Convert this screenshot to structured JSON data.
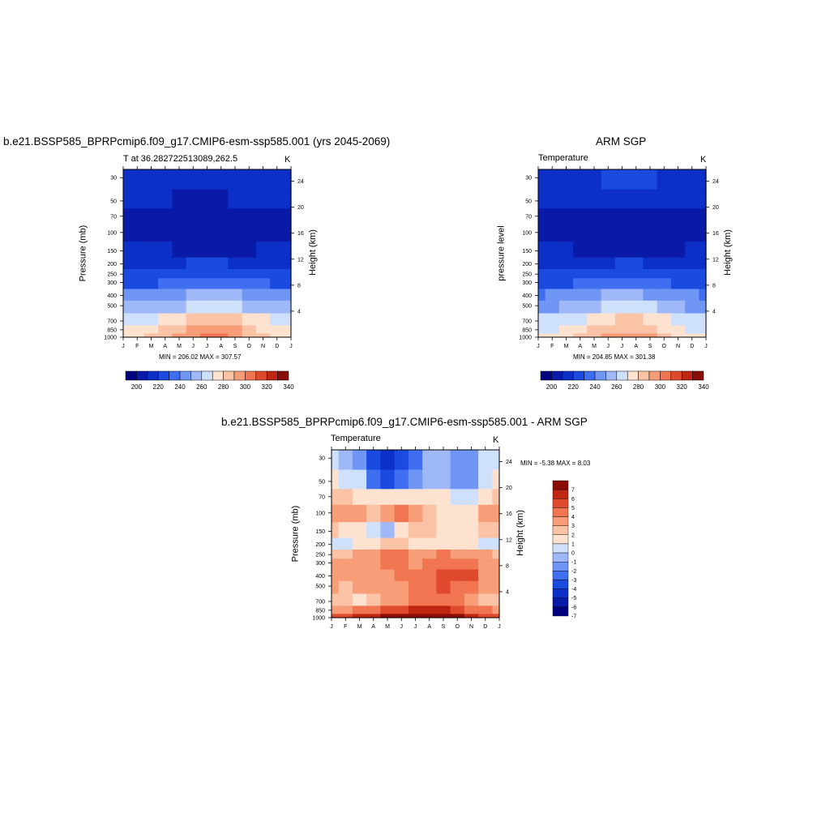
{
  "panels": [
    {
      "title": "b.e21.BSSP585_BPRPcmip6.f09_g17.CMIP6-esm-ssp585.001 (yrs 2045-2069)",
      "subtitle_left": "T at 36.282722513089,262.5",
      "units": "K",
      "ylabel_left": "Pressure (mb)",
      "ylabel_right": "Height (km)",
      "minmax": "MIN = 206.02 MAX = 307.57"
    },
    {
      "title": "ARM SGP",
      "subtitle_left": "Temperature",
      "units": "K",
      "ylabel_left": "pressure level",
      "ylabel_right": "Height (km)",
      "minmax": "MIN = 204.85 MAX = 301.38"
    },
    {
      "title": "b.e21.BSSP585_BPRPcmip6.f09_g17.CMIP6-esm-ssp585.001 - ARM SGP",
      "subtitle_left": "Temperature",
      "units": "K",
      "ylabel_left": "Pressure (mb)",
      "ylabel_right": "Height (km)",
      "minmax": "MIN =  -5.38 MAX =   8.03"
    }
  ],
  "colors": {
    "abs_scale": [
      "#00007f",
      "#0a1aa8",
      "#0c2fc8",
      "#1a4ae0",
      "#3f6ff0",
      "#6f95f5",
      "#9fb9f8",
      "#cfe0fb",
      "#fde2d0",
      "#fbc3a5",
      "#f79d78",
      "#f07550",
      "#e04a2c",
      "#c02612",
      "#8a0c06"
    ],
    "diff_scale": [
      "#00007f",
      "#0a1aa8",
      "#0c2fc8",
      "#1a4ae0",
      "#3f6ff0",
      "#6f95f5",
      "#9fb9f8",
      "#cfe0fb",
      "#fde2d0",
      "#fbc3a5",
      "#f79d78",
      "#f07550",
      "#e04a2c",
      "#c02612",
      "#8a0c06"
    ]
  },
  "chart_data": [
    {
      "type": "heatmap",
      "title": "b.e21.BSSP585_BPRPcmip6.f09_g17.CMIP6-esm-ssp585.001 (yrs 2045-2069)",
      "xlabel": "",
      "ylabel": "Pressure (mb)",
      "x_ticks": [
        "J",
        "F",
        "M",
        "A",
        "M",
        "J",
        "J",
        "A",
        "S",
        "O",
        "N",
        "D",
        "J"
      ],
      "y_ticks": [
        30,
        50,
        70,
        100,
        150,
        200,
        250,
        300,
        400,
        500,
        700,
        850,
        1000
      ],
      "y_right_ticks": [
        4,
        8,
        12,
        16,
        20,
        24
      ],
      "colorbar_labels": [
        "200",
        "220",
        "240",
        "260",
        "280",
        "300",
        "320",
        "340"
      ],
      "min": 206.02,
      "max": 307.57,
      "levels": [
        30,
        50,
        70,
        100,
        150,
        200,
        250,
        300,
        400,
        500,
        700,
        850,
        1000
      ],
      "months": [
        "J",
        "F",
        "M",
        "A",
        "M",
        "J",
        "J",
        "A",
        "S",
        "O",
        "N",
        "D",
        "J"
      ],
      "values": [
        [
          222,
          222,
          222,
          222,
          222,
          222,
          223,
          223,
          222,
          222,
          222,
          222,
          222
        ],
        [
          220,
          219,
          218,
          216,
          214,
          213,
          213,
          214,
          215,
          217,
          219,
          220,
          220
        ],
        [
          212,
          210,
          210,
          209,
          208,
          207,
          207,
          207,
          208,
          209,
          212,
          214,
          212
        ],
        [
          213,
          212,
          212,
          211,
          208,
          207,
          207,
          207,
          208,
          209,
          211,
          213,
          213
        ],
        [
          216,
          216,
          216,
          216,
          214,
          212,
          212,
          212,
          213,
          214,
          215,
          216,
          216
        ],
        [
          221,
          221,
          221,
          222,
          224,
          225,
          225,
          225,
          224,
          223,
          222,
          221,
          221
        ],
        [
          226,
          226,
          226,
          227,
          229,
          231,
          232,
          232,
          231,
          229,
          228,
          226,
          226
        ],
        [
          233,
          233,
          234,
          235,
          238,
          241,
          242,
          242,
          240,
          237,
          235,
          233,
          233
        ],
        [
          246,
          246,
          247,
          249,
          253,
          257,
          259,
          258,
          256,
          252,
          249,
          247,
          246
        ],
        [
          255,
          256,
          257,
          260,
          264,
          268,
          270,
          270,
          267,
          263,
          259,
          257,
          255
        ],
        [
          270,
          271,
          273,
          277,
          282,
          287,
          289,
          289,
          285,
          280,
          275,
          272,
          270
        ],
        [
          276,
          277,
          280,
          285,
          291,
          296,
          299,
          299,
          295,
          289,
          282,
          278,
          276
        ],
        [
          281,
          282,
          286,
          291,
          297,
          303,
          306,
          306,
          301,
          294,
          287,
          283,
          281
        ]
      ]
    },
    {
      "type": "heatmap",
      "title": "ARM SGP",
      "xlabel": "",
      "ylabel": "pressure level",
      "x_ticks": [
        "J",
        "F",
        "M",
        "A",
        "M",
        "J",
        "J",
        "A",
        "S",
        "O",
        "N",
        "D",
        "J"
      ],
      "y_ticks": [
        30,
        50,
        70,
        100,
        150,
        200,
        250,
        300,
        400,
        500,
        700,
        850,
        1000
      ],
      "y_right_ticks": [
        4,
        8,
        12,
        16,
        20,
        24
      ],
      "colorbar_labels": [
        "200",
        "220",
        "240",
        "260",
        "280",
        "300",
        "320",
        "340"
      ],
      "min": 204.85,
      "max": 301.38,
      "levels": [
        30,
        50,
        70,
        100,
        150,
        200,
        250,
        300,
        400,
        500,
        700,
        850,
        1000
      ],
      "months": [
        "J",
        "F",
        "M",
        "A",
        "M",
        "J",
        "J",
        "A",
        "S",
        "O",
        "N",
        "D",
        "J"
      ],
      "values": [
        [
          222,
          221,
          221,
          222,
          224,
          226,
          227,
          227,
          225,
          223,
          222,
          222,
          222
        ],
        [
          216,
          215,
          215,
          215,
          216,
          217,
          217,
          217,
          216,
          216,
          215,
          216,
          216
        ],
        [
          210,
          210,
          210,
          209,
          209,
          208,
          208,
          208,
          209,
          209,
          210,
          211,
          210
        ],
        [
          212,
          211,
          210,
          208,
          206,
          206,
          206,
          206,
          207,
          208,
          210,
          212,
          212
        ],
        [
          216,
          215,
          215,
          214,
          213,
          212,
          212,
          212,
          213,
          213,
          214,
          216,
          216
        ],
        [
          221,
          221,
          221,
          222,
          223,
          224,
          225,
          225,
          224,
          223,
          222,
          221,
          221
        ],
        [
          226,
          226,
          227,
          228,
          229,
          231,
          232,
          232,
          231,
          229,
          228,
          226,
          226
        ],
        [
          232,
          233,
          234,
          235,
          238,
          240,
          241,
          241,
          239,
          236,
          234,
          233,
          232
        ],
        [
          244,
          245,
          247,
          249,
          252,
          255,
          256,
          256,
          254,
          251,
          248,
          246,
          244
        ],
        [
          252,
          253,
          255,
          258,
          262,
          265,
          267,
          267,
          265,
          261,
          257,
          254,
          252
        ],
        [
          266,
          267,
          270,
          274,
          279,
          283,
          285,
          285,
          282,
          277,
          272,
          268,
          266
        ],
        [
          272,
          273,
          276,
          281,
          287,
          292,
          294,
          294,
          290,
          284,
          278,
          274,
          272
        ],
        [
          276,
          278,
          281,
          286,
          292,
          297,
          299,
          299,
          296,
          289,
          282,
          278,
          276
        ]
      ]
    },
    {
      "type": "heatmap",
      "title": "b.e21.BSSP585_BPRPcmip6.f09_g17.CMIP6-esm-ssp585.001 - ARM SGP",
      "xlabel": "",
      "ylabel": "Pressure (mb)",
      "x_ticks": [
        "J",
        "F",
        "M",
        "A",
        "M",
        "J",
        "J",
        "A",
        "S",
        "O",
        "N",
        "D",
        "J"
      ],
      "y_ticks": [
        30,
        50,
        70,
        100,
        150,
        200,
        250,
        300,
        400,
        500,
        700,
        850,
        1000
      ],
      "y_right_ticks": [
        4,
        8,
        12,
        16,
        20,
        24
      ],
      "colorbar_labels": [
        "7",
        "6",
        "5",
        "4",
        "3",
        "2",
        "1",
        "0",
        "-1",
        "-2",
        "-3",
        "-4",
        "-5",
        "-6",
        "-7"
      ],
      "min": -5.38,
      "max": 8.03,
      "levels": [
        30,
        50,
        70,
        100,
        150,
        200,
        250,
        300,
        400,
        500,
        700,
        850,
        1000
      ],
      "months": [
        "J",
        "F",
        "M",
        "A",
        "M",
        "J",
        "J",
        "A",
        "S",
        "O",
        "N",
        "D",
        "J"
      ],
      "values": [
        [
          -0.5,
          -1.0,
          -2.0,
          -4.5,
          -5.0,
          -4.0,
          -3.0,
          -1.0,
          -1.5,
          -2.5,
          -2.0,
          -0.5,
          -0.5
        ],
        [
          0.5,
          0.2,
          -0.5,
          -3.0,
          -4.5,
          -3.5,
          -2.5,
          -1.0,
          -1.0,
          -2.0,
          -2.5,
          -0.5,
          0.5
        ],
        [
          2.0,
          1.5,
          1.0,
          0.5,
          0.5,
          0.8,
          1.0,
          1.2,
          0.5,
          0.0,
          -0.5,
          0.5,
          2.0
        ],
        [
          3.0,
          3.2,
          2.5,
          2.0,
          2.5,
          3.5,
          3.0,
          2.0,
          1.2,
          0.5,
          0.5,
          2.5,
          3.0
        ],
        [
          1.5,
          1.0,
          0.5,
          -0.5,
          -1.0,
          1.0,
          2.0,
          1.5,
          0.5,
          1.0,
          1.0,
          1.5,
          1.5
        ],
        [
          0.0,
          -0.5,
          0.5,
          1.0,
          1.5,
          1.5,
          1.0,
          1.0,
          0.8,
          0.5,
          0.5,
          0.0,
          0.0
        ],
        [
          2.0,
          2.2,
          2.5,
          3.0,
          3.5,
          3.5,
          3.0,
          3.2,
          3.5,
          3.2,
          3.0,
          2.5,
          2.0
        ],
        [
          2.5,
          2.5,
          2.8,
          3.2,
          3.8,
          3.5,
          3.2,
          3.8,
          4.2,
          4.0,
          3.8,
          3.0,
          2.5
        ],
        [
          2.5,
          2.5,
          2.8,
          3.0,
          3.2,
          3.5,
          3.5,
          4.0,
          5.0,
          4.5,
          4.5,
          3.0,
          2.5
        ],
        [
          2.5,
          2.2,
          2.5,
          3.0,
          3.2,
          3.2,
          3.5,
          4.0,
          4.5,
          4.0,
          3.5,
          2.8,
          2.5
        ],
        [
          1.8,
          1.5,
          1.2,
          2.0,
          2.5,
          3.0,
          3.5,
          3.8,
          4.2,
          3.5,
          3.0,
          2.0,
          1.8
        ],
        [
          3.0,
          3.2,
          3.5,
          4.0,
          4.5,
          5.0,
          5.5,
          5.5,
          6.0,
          5.0,
          4.0,
          3.5,
          3.0
        ],
        [
          4.5,
          5.0,
          5.5,
          6.0,
          6.5,
          7.0,
          7.0,
          7.5,
          8.0,
          6.5,
          5.5,
          5.0,
          4.5
        ]
      ]
    }
  ]
}
